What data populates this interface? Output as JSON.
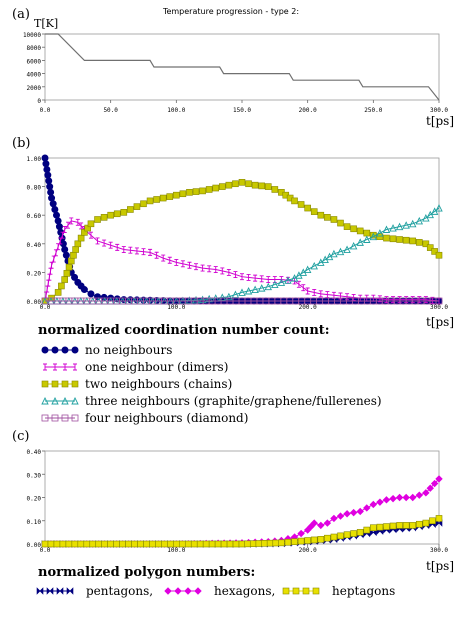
{
  "chart_data": [
    {
      "panel_label": "(a)",
      "type": "line",
      "title": "Temperature progression - type 2:",
      "ylabel": "T[K]",
      "xlabel": "t[ps]",
      "xlim": [
        0,
        300
      ],
      "ylim": [
        0,
        10000
      ],
      "x_tick_labels": [
        "0.0",
        "50.0",
        "100.0",
        "150.0",
        "200.0",
        "250.0",
        "300.0"
      ],
      "y_tick_labels": [
        "0",
        "2000",
        "4000",
        "6000",
        "8000",
        "10000"
      ],
      "x_ticks": [
        0,
        50,
        100,
        150,
        200,
        250,
        300
      ],
      "y_ticks": [
        0,
        2000,
        4000,
        6000,
        8000,
        10000
      ],
      "series": [
        {
          "color": "#707070",
          "x": [
            0,
            10,
            30,
            80,
            83,
            133,
            136,
            186,
            189,
            239,
            242,
            292,
            300
          ],
          "y": [
            10000,
            10000,
            6000,
            6000,
            5000,
            5000,
            4000,
            4000,
            3000,
            3000,
            2000,
            2000,
            0
          ]
        }
      ]
    },
    {
      "panel_label": "(b)",
      "type": "line",
      "xlabel": "t[ps]",
      "xlim": [
        0,
        300
      ],
      "ylim": [
        0,
        1.0
      ],
      "x_tick_labels": [
        "0.0",
        "100.0",
        "200.0",
        "300.0"
      ],
      "y_tick_labels": [
        "0.00",
        "0.20",
        "0.40",
        "0.60",
        "0.80",
        "1.00"
      ],
      "x_ticks": [
        0,
        100,
        200,
        300
      ],
      "y_ticks": [
        0,
        0.2,
        0.4,
        0.6,
        0.8,
        1.0
      ],
      "legend_title": "normalized coordination number count:",
      "series": [
        {
          "name": "no neighbours",
          "color": "#000080",
          "marker": "circle",
          "x": [
            0,
            5,
            10,
            15,
            20,
            25,
            30,
            35,
            40,
            50,
            60,
            80,
            100,
            150,
            200,
            250,
            300
          ],
          "y": [
            1.0,
            0.72,
            0.56,
            0.36,
            0.2,
            0.13,
            0.08,
            0.05,
            0.03,
            0.02,
            0.01,
            0.005,
            0.0,
            0.0,
            0.0,
            0.0,
            0.0
          ]
        },
        {
          "name": "one neighbour (dimers)",
          "color": "#d000d0",
          "marker": "bar",
          "x": [
            0,
            5,
            10,
            15,
            20,
            25,
            30,
            35,
            40,
            50,
            60,
            70,
            80,
            90,
            100,
            110,
            120,
            130,
            140,
            150,
            160,
            170,
            180,
            190,
            200,
            210,
            220,
            230,
            240,
            250,
            260,
            270,
            280,
            290,
            300
          ],
          "y": [
            0.0,
            0.25,
            0.38,
            0.5,
            0.56,
            0.55,
            0.5,
            0.46,
            0.42,
            0.39,
            0.36,
            0.35,
            0.34,
            0.3,
            0.27,
            0.25,
            0.23,
            0.22,
            0.2,
            0.17,
            0.16,
            0.15,
            0.15,
            0.14,
            0.07,
            0.05,
            0.04,
            0.03,
            0.02,
            0.02,
            0.01,
            0.01,
            0.01,
            0.01,
            0.0
          ]
        },
        {
          "name": "two neighbours (chains)",
          "color": "#c8c800",
          "marker": "square",
          "x": [
            0,
            5,
            10,
            15,
            20,
            25,
            30,
            35,
            40,
            50,
            60,
            70,
            80,
            90,
            100,
            110,
            120,
            130,
            140,
            150,
            160,
            170,
            180,
            190,
            200,
            210,
            220,
            230,
            240,
            250,
            260,
            270,
            280,
            290,
            300
          ],
          "y": [
            0.0,
            0.02,
            0.06,
            0.15,
            0.28,
            0.4,
            0.48,
            0.54,
            0.57,
            0.6,
            0.62,
            0.66,
            0.7,
            0.72,
            0.74,
            0.76,
            0.77,
            0.79,
            0.81,
            0.83,
            0.81,
            0.8,
            0.76,
            0.7,
            0.65,
            0.6,
            0.57,
            0.52,
            0.49,
            0.46,
            0.44,
            0.43,
            0.42,
            0.4,
            0.32
          ]
        },
        {
          "name": "three neighbours (graphite/graphene/fullerenes)",
          "color": "#20a0a0",
          "marker": "triangle",
          "x": [
            0,
            50,
            100,
            120,
            140,
            150,
            160,
            170,
            180,
            190,
            200,
            210,
            220,
            230,
            240,
            250,
            260,
            270,
            280,
            290,
            300
          ],
          "y": [
            0.0,
            0.0,
            0.0,
            0.01,
            0.03,
            0.06,
            0.08,
            0.1,
            0.13,
            0.16,
            0.22,
            0.27,
            0.33,
            0.36,
            0.41,
            0.45,
            0.5,
            0.52,
            0.54,
            0.58,
            0.65
          ]
        },
        {
          "name": "four neighbours (diamond)",
          "color": "#a050a0",
          "marker": "open-square",
          "x": [
            0,
            50,
            100,
            150,
            200,
            250,
            300
          ],
          "y": [
            0.0,
            0.0,
            0.0,
            0.0,
            0.0,
            0.0,
            0.0
          ]
        }
      ]
    },
    {
      "panel_label": "(c)",
      "type": "line",
      "xlabel": "t[ps]",
      "xlim": [
        0,
        300
      ],
      "ylim": [
        0,
        0.4
      ],
      "x_tick_labels": [
        "0.0",
        "100.0",
        "200.0",
        "300.0"
      ],
      "y_tick_labels": [
        "0.00",
        "0.10",
        "0.20",
        "0.30",
        "0.40"
      ],
      "x_ticks": [
        0,
        100,
        200,
        300
      ],
      "y_ticks": [
        0,
        0.1,
        0.2,
        0.3,
        0.4
      ],
      "legend_title": "normalized polygon numbers:",
      "series": [
        {
          "name": "pentagons,",
          "color": "#000080",
          "marker": "bowtie",
          "x": [
            0,
            50,
            100,
            150,
            180,
            200,
            210,
            220,
            230,
            240,
            250,
            260,
            270,
            280,
            290,
            300
          ],
          "y": [
            0.0,
            0.0,
            0.0,
            0.0,
            0.002,
            0.01,
            0.015,
            0.02,
            0.03,
            0.04,
            0.05,
            0.06,
            0.065,
            0.07,
            0.08,
            0.09
          ]
        },
        {
          "name": "hexagons,",
          "color": "#e000e0",
          "marker": "diamond",
          "x": [
            0,
            50,
            100,
            150,
            170,
            180,
            190,
            200,
            205,
            210,
            215,
            220,
            230,
            240,
            250,
            260,
            270,
            280,
            290,
            300
          ],
          "y": [
            0.0,
            0.0,
            0.0,
            0.005,
            0.01,
            0.015,
            0.03,
            0.06,
            0.09,
            0.08,
            0.09,
            0.11,
            0.13,
            0.14,
            0.17,
            0.19,
            0.2,
            0.2,
            0.22,
            0.28
          ]
        },
        {
          "name": "heptagons",
          "color": "#e8e000",
          "marker": "square",
          "x": [
            0,
            50,
            100,
            150,
            180,
            200,
            210,
            220,
            230,
            240,
            250,
            260,
            270,
            280,
            290,
            300
          ],
          "y": [
            0.0,
            0.0,
            0.0,
            0.0,
            0.005,
            0.015,
            0.02,
            0.03,
            0.04,
            0.05,
            0.07,
            0.075,
            0.08,
            0.08,
            0.09,
            0.11
          ]
        }
      ]
    }
  ]
}
